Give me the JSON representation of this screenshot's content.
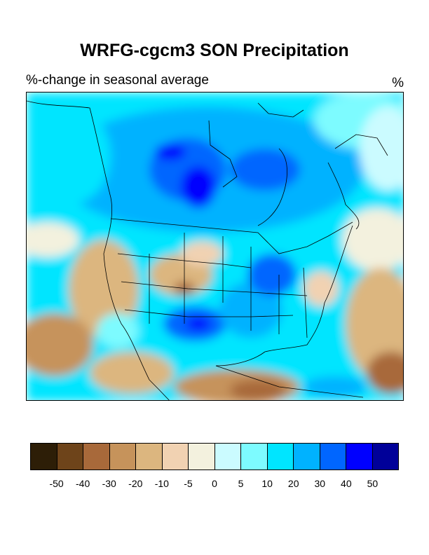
{
  "title": "WRFG-cgcm3 SON Precipitation",
  "subtitle_left": "%-change in seasonal average",
  "subtitle_right": "%",
  "colorbar": {
    "colors": [
      "#2d1e07",
      "#6e441a",
      "#a8693a",
      "#c6935b",
      "#dcb67f",
      "#f1d2b2",
      "#f3f1de",
      "#cbfbff",
      "#7dfbff",
      "#00e5ff",
      "#00b2ff",
      "#0066ff",
      "#0000ff",
      "#000099"
    ],
    "tick_labels": [
      "-50",
      "-40",
      "-30",
      "-20",
      "-10",
      "-5",
      "0",
      "5",
      "10",
      "20",
      "30",
      "40",
      "50"
    ]
  }
}
